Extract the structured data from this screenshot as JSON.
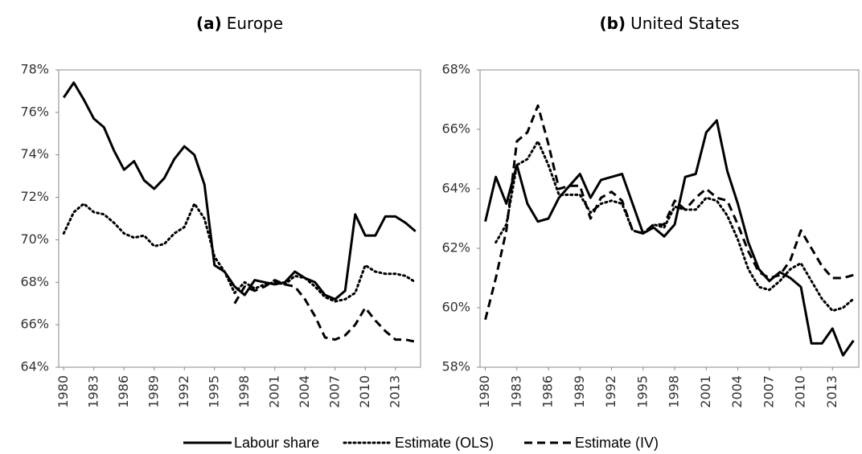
{
  "chart_data": [
    {
      "type": "line",
      "panel_label": "(a)",
      "title": "Europe",
      "x": [
        1980,
        1981,
        1982,
        1983,
        1984,
        1985,
        1986,
        1987,
        1988,
        1989,
        1990,
        1991,
        1992,
        1993,
        1994,
        1995,
        1996,
        1997,
        1998,
        1999,
        2000,
        2001,
        2002,
        2003,
        2004,
        2005,
        2006,
        2007,
        2008,
        2009,
        2010,
        2011,
        2012,
        2013,
        2014,
        2015
      ],
      "xlim": [
        1979.5,
        2015.5
      ],
      "xticks": [
        1980,
        1983,
        1986,
        1989,
        1992,
        1995,
        1998,
        2001,
        2004,
        2007,
        2010,
        2013
      ],
      "ylim": [
        64,
        78
      ],
      "yticks": [
        {
          "value": 64,
          "label": "64%"
        },
        {
          "value": 66,
          "label": "66%"
        },
        {
          "value": 68,
          "label": "68%"
        },
        {
          "value": 70,
          "label": "70%"
        },
        {
          "value": 72,
          "label": "72%"
        },
        {
          "value": 74,
          "label": "74%"
        },
        {
          "value": 76,
          "label": "76%"
        },
        {
          "value": 78,
          "label": "78%"
        }
      ],
      "series": [
        {
          "color": "#000000",
          "dash": "solid",
          "values": [
            76.7,
            77.4,
            76.6,
            75.7,
            75.3,
            74.2,
            73.3,
            73.7,
            72.8,
            72.4,
            72.9,
            73.8,
            74.4,
            74.0,
            72.6,
            68.8,
            68.5,
            67.8,
            67.4,
            68.1,
            68.0,
            67.9,
            68.0,
            68.5,
            68.2,
            68.0,
            67.4,
            67.2,
            67.6,
            71.2,
            70.2,
            70.2,
            71.1,
            71.1,
            70.8,
            70.4
          ]
        },
        {
          "color": "#000000",
          "dash": "dotted",
          "values": [
            70.3,
            71.3,
            71.7,
            71.3,
            71.2,
            70.8,
            70.3,
            70.1,
            70.2,
            69.7,
            69.8,
            70.3,
            70.6,
            71.7,
            71.0,
            69.2,
            68.5,
            67.5,
            68.0,
            67.7,
            67.9,
            68.0,
            67.9,
            68.3,
            68.2,
            67.8,
            67.3,
            67.1,
            67.2,
            67.5,
            68.8,
            68.5,
            68.4,
            68.4,
            68.3,
            68.0
          ]
        },
        {
          "color": "#000000",
          "dash": "dashed",
          "values": [
            null,
            null,
            null,
            null,
            null,
            null,
            null,
            null,
            null,
            null,
            null,
            null,
            null,
            null,
            null,
            null,
            null,
            67.0,
            67.8,
            67.6,
            67.8,
            68.1,
            67.9,
            67.8,
            67.2,
            66.4,
            65.4,
            65.3,
            65.5,
            66.0,
            66.8,
            66.2,
            65.7,
            65.3,
            65.3,
            65.2
          ]
        }
      ]
    },
    {
      "type": "line",
      "panel_label": "(b)",
      "title": "United States",
      "x": [
        1980,
        1981,
        1982,
        1983,
        1984,
        1985,
        1986,
        1987,
        1988,
        1989,
        1990,
        1991,
        1992,
        1993,
        1994,
        1995,
        1996,
        1997,
        1998,
        1999,
        2000,
        2001,
        2002,
        2003,
        2004,
        2005,
        2006,
        2007,
        2008,
        2009,
        2010,
        2011,
        2012,
        2013,
        2014,
        2015
      ],
      "xlim": [
        1979.5,
        2015.5
      ],
      "xticks": [
        1980,
        1983,
        1986,
        1989,
        1992,
        1995,
        1998,
        2001,
        2004,
        2007,
        2010,
        2013
      ],
      "ylim": [
        58,
        68
      ],
      "yticks": [
        {
          "value": 58,
          "label": "58%"
        },
        {
          "value": 60,
          "label": "60%"
        },
        {
          "value": 62,
          "label": "62%"
        },
        {
          "value": 64,
          "label": "64%"
        },
        {
          "value": 66,
          "label": "66%"
        },
        {
          "value": 68,
          "label": "68%"
        }
      ],
      "series": [
        {
          "color": "#000000",
          "dash": "solid",
          "values": [
            62.9,
            64.4,
            63.5,
            64.8,
            63.5,
            62.9,
            63.0,
            63.7,
            64.1,
            64.5,
            63.7,
            64.3,
            64.4,
            64.5,
            63.5,
            62.5,
            62.7,
            62.4,
            62.8,
            64.4,
            64.5,
            65.9,
            66.3,
            64.6,
            63.5,
            62.2,
            61.3,
            60.9,
            61.2,
            61.0,
            60.7,
            58.8,
            58.8,
            59.3,
            58.4,
            58.9
          ]
        },
        {
          "color": "#000000",
          "dash": "dotted",
          "values": [
            null,
            62.2,
            62.8,
            64.8,
            65.0,
            65.6,
            64.8,
            63.8,
            63.8,
            63.8,
            63.2,
            63.5,
            63.6,
            63.5,
            62.6,
            62.5,
            62.8,
            62.7,
            63.4,
            63.3,
            63.3,
            63.7,
            63.6,
            63.1,
            62.3,
            61.3,
            60.7,
            60.6,
            60.9,
            61.3,
            61.5,
            60.9,
            60.3,
            59.9,
            60.0,
            60.3
          ]
        },
        {
          "color": "#000000",
          "dash": "dashed",
          "values": [
            59.6,
            61.0,
            62.6,
            65.6,
            65.9,
            66.8,
            65.5,
            64.0,
            64.1,
            64.1,
            63.0,
            63.7,
            63.9,
            63.6,
            62.6,
            62.5,
            62.8,
            62.8,
            63.6,
            63.3,
            63.7,
            64.0,
            63.7,
            63.6,
            62.8,
            61.9,
            61.2,
            61.0,
            61.1,
            61.6,
            62.6,
            62.0,
            61.4,
            61.0,
            61.0,
            61.1
          ]
        }
      ]
    }
  ],
  "legend": [
    {
      "name": "Labour share",
      "dash": "solid"
    },
    {
      "name": "Estimate (OLS)",
      "dash": "dotted"
    },
    {
      "name": "Estimate (IV)",
      "dash": "dashed"
    }
  ]
}
